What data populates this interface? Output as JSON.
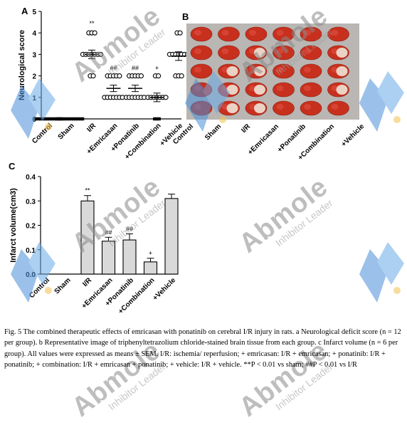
{
  "panels": {
    "a": "A",
    "b": "B",
    "c": "C"
  },
  "caption": "Fig. 5 The combined therapeutic effects of emricasan with ponatinib on cerebral I/R injury in rats. a Neurological deficit score (n = 12 per group). b Representative image of triphenyltetrazolium chloride-stained brain tissue from each group. c Infarct volume (n = 6 per group). All values were expressed as means ± SEM. I/R: ischemia/ reperfusion; + emricasan: I/R + emricasan; + ponatinib: I/R + ponatinib; + combination: I/R + emricasan + ponatinib; + vehicle: I/R + vehicle. **P < 0.01 vs sham; ##P < 0.01 vs I/R",
  "watermark": {
    "brand": "Abmole",
    "tagline": "Inhibitor Leader"
  },
  "colors": {
    "bar_fill": "#d9d9d9",
    "tissue_red": "#c8301e",
    "watermark_blue": "#4a90d9",
    "watermark_dot": "#f2c14e"
  },
  "panel_b_labels": [
    "Control",
    "Sham",
    "I/R",
    "+Emricasan",
    "+Ponatinib",
    "+Combination",
    "+Vehicle"
  ],
  "chart_data": [
    {
      "type": "scatter",
      "ylabel": "Neurological score",
      "ylim": [
        0,
        5
      ],
      "yticks": [
        "0",
        "1",
        "2",
        "3",
        "4",
        "5"
      ],
      "categories": [
        "Control",
        "Sham",
        "I/R",
        "+Emricasan",
        "+Ponatinib",
        "+Combination",
        "+Vehicle"
      ],
      "points": [
        [
          0,
          0,
          0,
          0,
          0,
          0,
          0,
          0,
          0,
          0,
          0,
          0
        ],
        [
          0,
          0,
          0,
          0,
          0,
          0,
          0,
          0,
          0,
          0,
          0,
          0
        ],
        [
          2,
          2,
          3,
          3,
          3,
          3,
          3,
          3,
          3,
          4,
          4,
          4
        ],
        [
          1,
          1,
          1,
          1,
          1,
          1,
          1,
          2,
          2,
          2,
          2,
          2
        ],
        [
          1,
          1,
          1,
          1,
          1,
          1,
          1,
          2,
          2,
          2,
          2,
          2
        ],
        [
          0,
          0,
          0,
          1,
          1,
          1,
          1,
          1,
          1,
          1,
          2,
          2
        ],
        [
          2,
          2,
          2,
          3,
          3,
          3,
          3,
          3,
          3,
          3,
          4,
          4
        ]
      ],
      "means": [
        0,
        0,
        3.0,
        1.42,
        1.42,
        1.0,
        2.92
      ],
      "sem": [
        0,
        0,
        0.2,
        0.15,
        0.15,
        0.2,
        0.2
      ],
      "annotations": [
        "",
        "",
        "**",
        "##",
        "##",
        "+",
        ""
      ]
    },
    {
      "type": "bar",
      "ylabel": "Infarct volume(cm3)",
      "ylim": [
        0,
        0.4
      ],
      "yticks": [
        "0.0",
        "0.1",
        "0.2",
        "0.3",
        "0.4"
      ],
      "categories": [
        "Control",
        "Sham",
        "I/R",
        "+Emricasan",
        "+Ponatinib",
        "+Combination",
        "+Vehicle"
      ],
      "values": [
        0,
        0,
        0.3,
        0.135,
        0.14,
        0.05,
        0.31
      ],
      "sem": [
        0,
        0,
        0.022,
        0.016,
        0.025,
        0.015,
        0.018
      ],
      "annotations": [
        "",
        "",
        "**",
        "##",
        "##",
        "+",
        ""
      ]
    }
  ]
}
